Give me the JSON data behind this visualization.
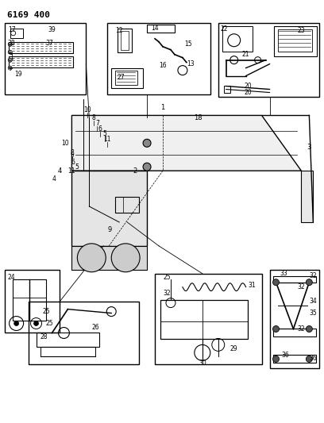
{
  "title": "6169 400",
  "bg_color": "#ffffff",
  "line_color": "#000000",
  "fig_width": 4.08,
  "fig_height": 5.33,
  "dpi": 100
}
